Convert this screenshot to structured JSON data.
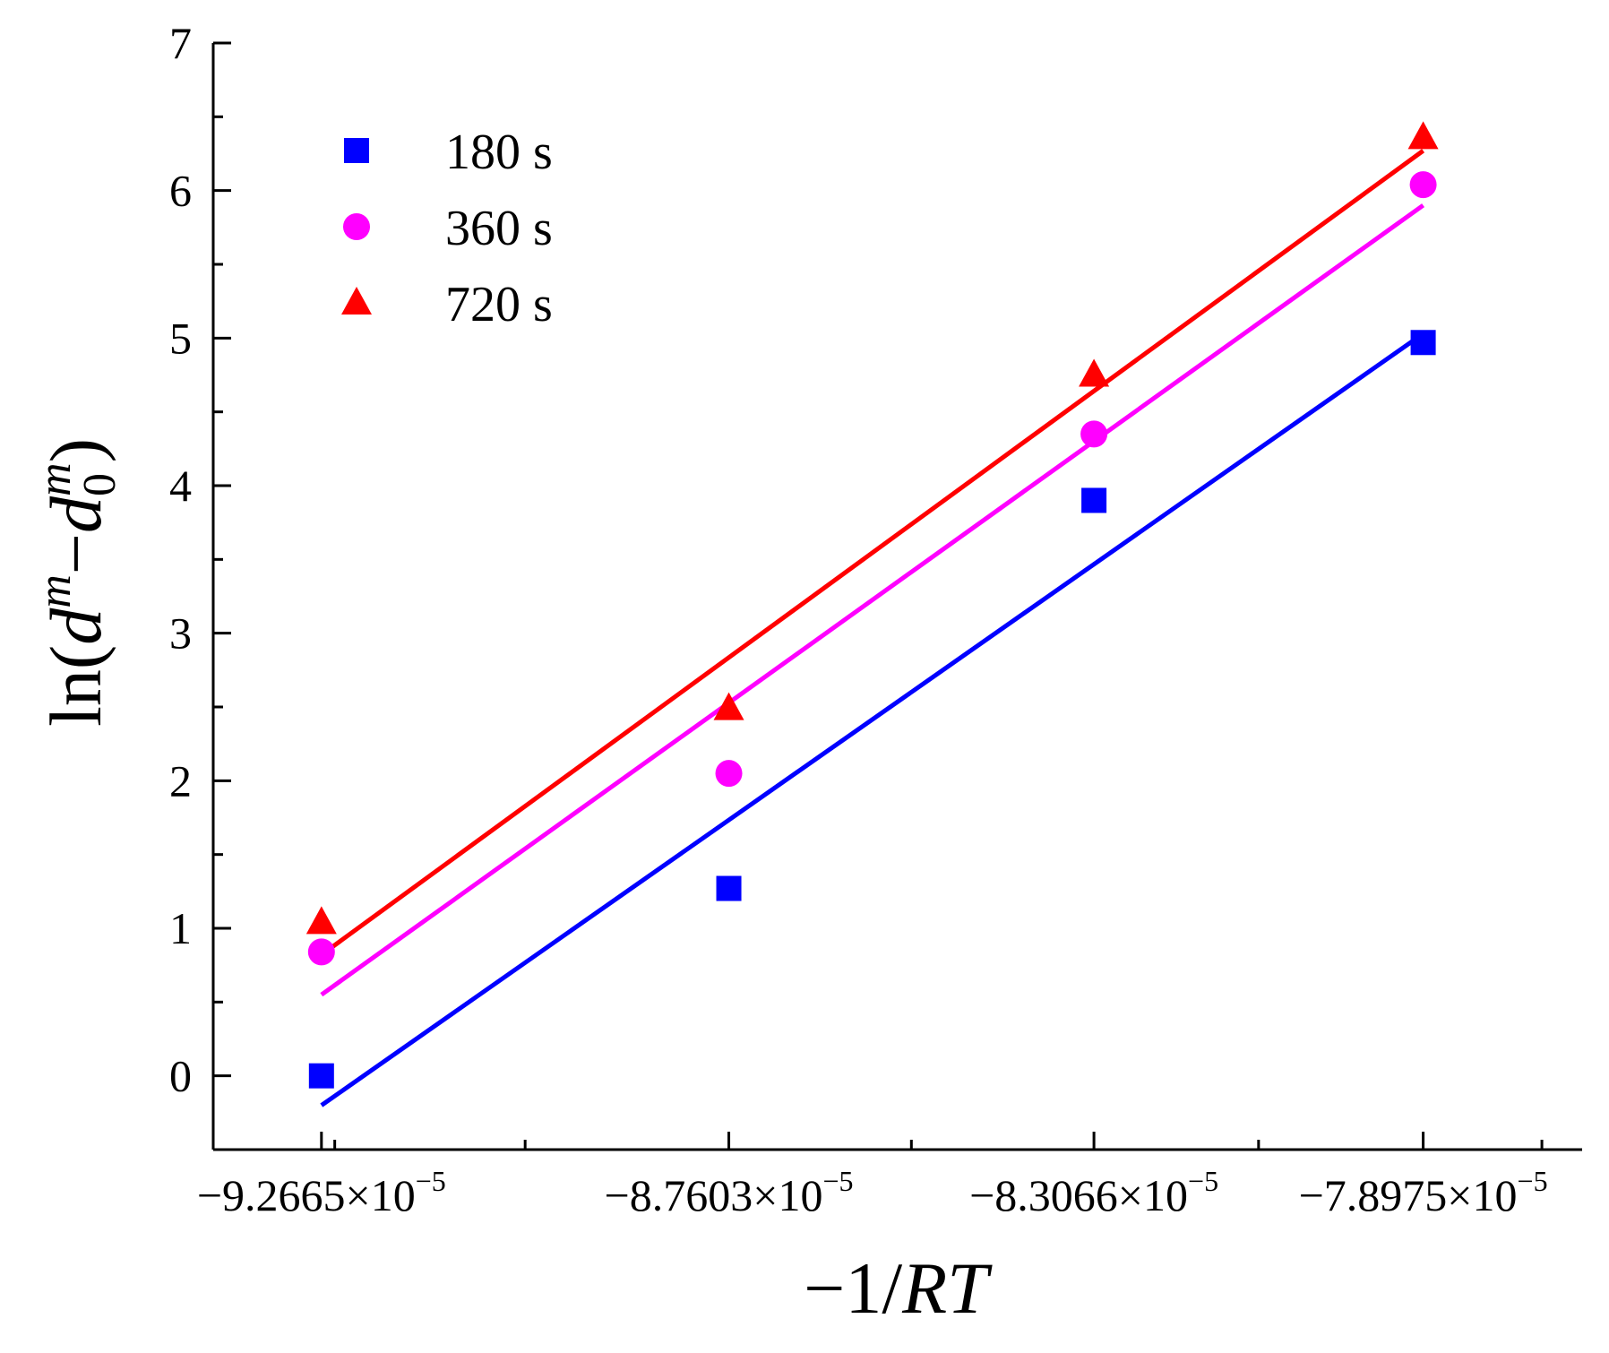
{
  "chart_data": {
    "type": "scatter",
    "title": "",
    "xlabel": "−1/RT",
    "xlabel_parts": {
      "minus": "−",
      "one_slash": "1/",
      "italic": "RT"
    },
    "ylabel": "ln(d^m−d_0^m)",
    "ylabel_parts": {
      "open": "ln(",
      "d": "d",
      "m": "m",
      "minus": "−",
      "sub0": "0",
      "close": ")"
    },
    "x_ticks": [
      {
        "value": -9.2665e-05,
        "label": "−9.2665×10",
        "exp": "−5"
      },
      {
        "value": -8.7603e-05,
        "label": "−8.7603×10",
        "exp": "−5"
      },
      {
        "value": -8.3066e-05,
        "label": "−8.3066×10",
        "exp": "−5"
      },
      {
        "value": -7.8975e-05,
        "label": "−7.8975×10",
        "exp": "−5"
      }
    ],
    "xlim": [
      -9.401e-05,
      -7.7e-05
    ],
    "ylim": [
      -0.5,
      7
    ],
    "y_ticks": [
      0,
      1,
      2,
      3,
      4,
      5,
      6,
      7
    ],
    "legend_position": "top-left",
    "series": [
      {
        "name": "180 s",
        "marker": "square",
        "color": "#0000ff",
        "x": [
          -9.2665e-05,
          -8.7603e-05,
          -8.3066e-05,
          -7.8975e-05
        ],
        "y": [
          0.0,
          1.27,
          3.9,
          4.97
        ],
        "fit_y": [
          -0.2,
          5.03
        ]
      },
      {
        "name": "360 s",
        "marker": "circle",
        "color": "#ff00ff",
        "x": [
          -9.2665e-05,
          -8.7603e-05,
          -8.3066e-05,
          -7.8975e-05
        ],
        "y": [
          0.84,
          2.05,
          4.35,
          6.04
        ],
        "fit_y": [
          0.55,
          5.9
        ]
      },
      {
        "name": "720 s",
        "marker": "triangle",
        "color": "#ff0000",
        "x": [
          -9.2665e-05,
          -8.7603e-05,
          -8.3066e-05,
          -7.8975e-05
        ],
        "y": [
          1.04,
          2.49,
          4.75,
          6.36
        ],
        "fit_y": [
          0.82,
          6.27
        ]
      }
    ]
  }
}
